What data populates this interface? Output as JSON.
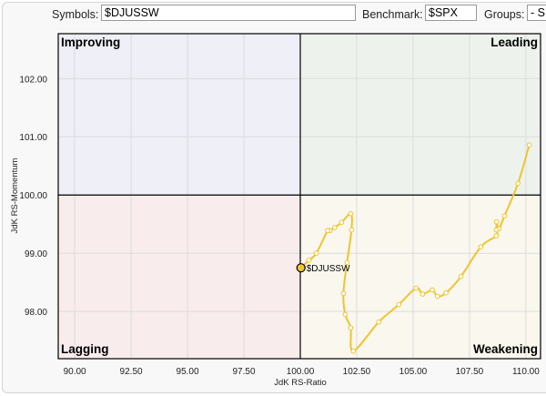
{
  "toolbar": {
    "symbols_label": "Symbols:",
    "symbols_value": "$DJUSSW",
    "benchmark_label": "Benchmark:",
    "benchmark_value": "$SPX",
    "groups_label": "Groups:",
    "groups_value": "- S"
  },
  "chart_data": {
    "type": "line",
    "xlabel": "JdK RS-Ratio",
    "ylabel": "JdK RS-Momentum",
    "xlim": [
      89.27,
      110.65
    ],
    "ylim": [
      97.19,
      102.77
    ],
    "xticks": [
      "90.00",
      "92.50",
      "95.00",
      "97.50",
      "100.00",
      "102.50",
      "105.00",
      "107.50",
      "110.00"
    ],
    "yticks": [
      "98.00",
      "99.00",
      "100.00",
      "101.00",
      "102.00"
    ],
    "grid": true,
    "quadrants": {
      "improving": "Improving",
      "leading": "Leading",
      "lagging": "Lagging",
      "weakening": "Weakening"
    },
    "colors": {
      "improving_bg": "#eeeff7",
      "leading_bg": "#edf3ec",
      "lagging_bg": "#f9ecec",
      "weakening_bg": "#f9f7ee",
      "improving_text": "#8f98d8",
      "leading_text": "#7fbf7f",
      "lagging_text": "#ec9aa5",
      "weakening_text": "#f3d35a",
      "series": "#f0c430"
    },
    "series": [
      {
        "name": "$DJUSSW",
        "points": [
          [
            110.15,
            100.86
          ],
          [
            109.65,
            100.2
          ],
          [
            109.05,
            99.64
          ],
          [
            108.8,
            99.42
          ],
          [
            108.7,
            99.54
          ],
          [
            108.69,
            99.4
          ],
          [
            108.69,
            99.3
          ],
          [
            108.0,
            99.11
          ],
          [
            107.12,
            98.6
          ],
          [
            106.46,
            98.32
          ],
          [
            106.08,
            98.26
          ],
          [
            105.85,
            98.37
          ],
          [
            105.42,
            98.3
          ],
          [
            105.13,
            98.4
          ],
          [
            104.37,
            98.12
          ],
          [
            103.48,
            97.82
          ],
          [
            102.35,
            97.32
          ],
          [
            102.23,
            97.72
          ],
          [
            101.99,
            97.95
          ],
          [
            101.91,
            98.31
          ],
          [
            102.07,
            98.84
          ],
          [
            102.27,
            99.4
          ],
          [
            102.24,
            99.68
          ],
          [
            101.83,
            99.53
          ],
          [
            101.52,
            99.44
          ],
          [
            101.32,
            99.39
          ],
          [
            101.21,
            99.39
          ],
          [
            100.71,
            99.0
          ],
          [
            100.38,
            98.88
          ],
          [
            100.03,
            98.75
          ]
        ]
      }
    ]
  }
}
